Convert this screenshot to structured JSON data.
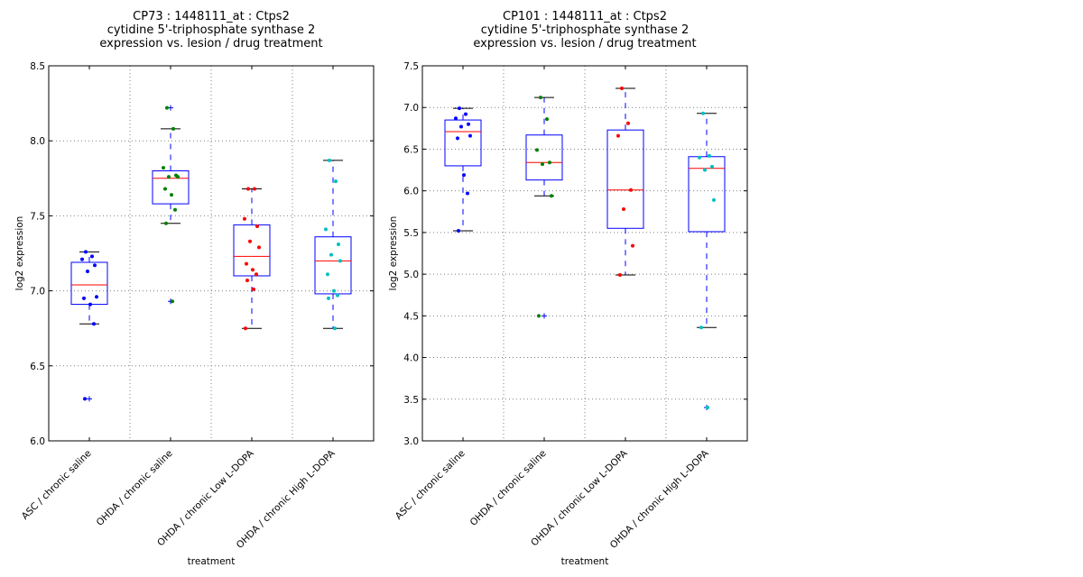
{
  "chart_data": [
    {
      "type": "box",
      "title_lines": [
        "CP73 : 1448111_at : Ctps2",
        "cytidine 5'-triphosphate synthase 2",
        "expression vs. lesion / drug treatment"
      ],
      "xlabel": "treatment",
      "ylabel": "log2 expression",
      "ylim": [
        6.0,
        8.5
      ],
      "yticks": [
        "6.0",
        "6.5",
        "7.0",
        "7.5",
        "8.0",
        "8.5"
      ],
      "ytick_values": [
        6.0,
        6.5,
        7.0,
        7.5,
        8.0,
        8.5
      ],
      "grid": true,
      "categories": [
        "ASC / chronic saline",
        "OHDA / chronic saline",
        "OHDA / chronic Low L-DOPA",
        "OHDA / chronic High L-DOPA"
      ],
      "groups": [
        {
          "name": "ASC / chronic saline",
          "color": "#0000ff",
          "q1": 6.91,
          "median": 7.04,
          "q3": 7.19,
          "whisker_low": 6.78,
          "whisker_high": 7.26,
          "outliers": [
            6.28
          ],
          "points": [
            7.26,
            7.23,
            7.21,
            7.17,
            7.13,
            6.96,
            6.95,
            6.91,
            6.78,
            6.28
          ]
        },
        {
          "name": "OHDA / chronic saline",
          "color": "#008000",
          "q1": 7.58,
          "median": 7.75,
          "q3": 7.8,
          "whisker_low": 7.45,
          "whisker_high": 8.08,
          "outliers": [
            8.22,
            6.93
          ],
          "points": [
            8.22,
            8.08,
            7.82,
            7.77,
            7.76,
            7.76,
            7.68,
            7.64,
            7.54,
            7.45,
            6.93
          ]
        },
        {
          "name": "OHDA / chronic Low L-DOPA",
          "color": "#ff0000",
          "q1": 7.1,
          "median": 7.23,
          "q3": 7.44,
          "whisker_low": 6.75,
          "whisker_high": 7.68,
          "outliers": [],
          "points": [
            7.68,
            7.68,
            7.48,
            7.43,
            7.33,
            7.29,
            7.18,
            7.14,
            7.11,
            7.07,
            7.01,
            6.75
          ]
        },
        {
          "name": "OHDA / chronic High L-DOPA",
          "color": "#00bfbf",
          "q1": 6.98,
          "median": 7.2,
          "q3": 7.36,
          "whisker_low": 6.75,
          "whisker_high": 7.87,
          "outliers": [],
          "points": [
            7.87,
            7.73,
            7.41,
            7.31,
            7.24,
            7.2,
            7.11,
            7.0,
            6.97,
            6.95,
            6.75
          ]
        }
      ]
    },
    {
      "type": "box",
      "title_lines": [
        "CP101 : 1448111_at : Ctps2",
        "cytidine 5'-triphosphate synthase 2",
        "expression vs. lesion / drug treatment"
      ],
      "xlabel": "treatment",
      "ylabel": "log2 expression",
      "ylim": [
        3.0,
        7.5
      ],
      "yticks": [
        "3.0",
        "3.5",
        "4.0",
        "4.5",
        "5.0",
        "5.5",
        "6.0",
        "6.5",
        "7.0",
        "7.5"
      ],
      "ytick_values": [
        3.0,
        3.5,
        4.0,
        4.5,
        5.0,
        5.5,
        6.0,
        6.5,
        7.0,
        7.5
      ],
      "grid": true,
      "categories": [
        "ASC / chronic saline",
        "OHDA / chronic saline",
        "OHDA / chronic Low L-DOPA",
        "OHDA / chronic High L-DOPA"
      ],
      "groups": [
        {
          "name": "ASC / chronic saline",
          "color": "#0000ff",
          "q1": 6.3,
          "median": 6.71,
          "q3": 6.85,
          "whisker_low": 5.52,
          "whisker_high": 6.99,
          "outliers": [],
          "points": [
            6.99,
            6.92,
            6.87,
            6.8,
            6.77,
            6.66,
            6.63,
            6.19,
            5.97,
            5.52
          ]
        },
        {
          "name": "OHDA / chronic saline",
          "color": "#008000",
          "q1": 6.13,
          "median": 6.34,
          "q3": 6.67,
          "whisker_low": 5.94,
          "whisker_high": 7.12,
          "outliers": [
            4.5
          ],
          "points": [
            7.12,
            6.86,
            6.49,
            6.34,
            6.32,
            5.94,
            4.5
          ]
        },
        {
          "name": "OHDA / chronic Low L-DOPA",
          "color": "#ff0000",
          "q1": 5.55,
          "median": 6.01,
          "q3": 6.73,
          "whisker_low": 4.99,
          "whisker_high": 7.23,
          "outliers": [],
          "points": [
            7.23,
            6.81,
            6.66,
            6.01,
            5.78,
            5.34,
            4.99
          ]
        },
        {
          "name": "OHDA / chronic High L-DOPA",
          "color": "#00bfbf",
          "q1": 5.51,
          "median": 6.27,
          "q3": 6.41,
          "whisker_low": 4.36,
          "whisker_high": 6.93,
          "outliers": [
            3.4
          ],
          "points": [
            6.93,
            6.42,
            6.4,
            6.29,
            6.25,
            5.89,
            4.36,
            3.4
          ]
        }
      ]
    }
  ],
  "style": {
    "box_color": "#0000ff",
    "median_color": "#ff0000",
    "whisker_cap_color": "#000000",
    "grid_color": "#808080"
  }
}
